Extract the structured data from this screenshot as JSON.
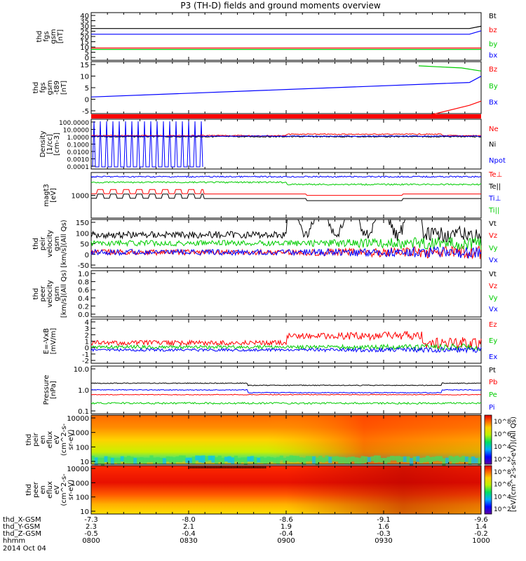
{
  "title": "P3 (TH-D) fields and ground moments overview",
  "colors": {
    "black": "#000000",
    "red": "#ff0000",
    "green": "#00cc00",
    "blue": "#0000ff"
  },
  "chart_data": [
    {
      "type": "line",
      "ylabel": [
        "thd",
        "fgs",
        "gsm",
        "[nT]"
      ],
      "yticks": [
        "40",
        "35",
        "30",
        "25",
        "20",
        "15",
        "10",
        "5",
        "0"
      ],
      "legend": [
        {
          "name": "Bt",
          "color": "black"
        },
        {
          "name": "bz",
          "color": "red"
        },
        {
          "name": "by",
          "color": "green"
        },
        {
          "name": "bx",
          "color": "blue"
        }
      ],
      "series": [
        {
          "name": "Bt",
          "color": "black",
          "points": [
            [
              0,
              28
            ],
            [
              0.97,
              28
            ],
            [
              1,
              30
            ]
          ]
        },
        {
          "name": "bz",
          "color": "red",
          "points": [
            [
              0,
              10.8
            ],
            [
              1,
              10.8
            ]
          ]
        },
        {
          "name": "by",
          "color": "green",
          "points": [
            [
              0,
              9.6
            ],
            [
              1,
              9.6
            ]
          ]
        },
        {
          "name": "bx",
          "color": "blue",
          "points": [
            [
              0,
              23
            ],
            [
              0.97,
              23
            ],
            [
              1,
              26
            ]
          ]
        }
      ],
      "ylim": [
        0,
        42
      ]
    },
    {
      "type": "line",
      "ylabel": [
        "thd",
        "fgs",
        "gsm",
        "-t89",
        "[nT]"
      ],
      "yticks": [
        "15",
        "10",
        "5",
        "0",
        "-5"
      ],
      "legend": [
        {
          "name": "Bz",
          "color": "red"
        },
        {
          "name": "By",
          "color": "green"
        },
        {
          "name": "Bx",
          "color": "blue"
        }
      ],
      "series": [
        {
          "name": "Bz",
          "color": "red",
          "points": [
            [
              0.84,
              -10
            ],
            [
              0.97,
              -4
            ],
            [
              1,
              -2
            ]
          ]
        },
        {
          "name": "By",
          "color": "green",
          "points": [
            [
              0.84,
              15
            ],
            [
              0.95,
              14
            ],
            [
              1,
              12.5
            ]
          ]
        },
        {
          "name": "Bx",
          "color": "blue",
          "points": [
            [
              0,
              0
            ],
            [
              0.97,
              7
            ],
            [
              1,
              10
            ]
          ]
        }
      ],
      "ylim": [
        -8,
        17
      ]
    },
    {
      "type": "line",
      "ylabel": [
        "Density",
        "[1/cc]",
        "[cm-3]"
      ],
      "yticks": [
        "100.0000",
        "10.0000",
        "1.0000",
        "0.1000",
        "0.0100",
        "0.0010",
        "0.0001"
      ],
      "legend": [
        {
          "name": "Ne",
          "color": "red"
        },
        {
          "name": "Ni",
          "color": "black"
        },
        {
          "name": "Npot",
          "color": "blue"
        }
      ],
      "series": [],
      "scale": "log"
    },
    {
      "type": "line",
      "ylabel": [
        "magt3",
        "[eV]"
      ],
      "yticks": [
        "1000"
      ],
      "legend": [
        {
          "name": "Te⊥",
          "color": "red"
        },
        {
          "name": "Te||",
          "color": "black"
        },
        {
          "name": "Ti⊥",
          "color": "blue"
        },
        {
          "name": "Ti||",
          "color": "green"
        }
      ],
      "series": [],
      "scale": "log"
    },
    {
      "type": "line",
      "ylabel": [
        "thd",
        "peir",
        "velocity",
        "gsm",
        "[km/s](All Qs)"
      ],
      "yticks": [
        "150",
        "100",
        "50",
        "0",
        "-50"
      ],
      "legend": [
        {
          "name": "Vt",
          "color": "black"
        },
        {
          "name": "Vz",
          "color": "red"
        },
        {
          "name": "Vy",
          "color": "green"
        },
        {
          "name": "Vx",
          "color": "blue"
        }
      ],
      "series": [],
      "ylim": [
        -50,
        150
      ]
    },
    {
      "type": "line",
      "ylabel": [
        "thd",
        "peer",
        "velocity",
        "gsm",
        "[km/s](All Qs)"
      ],
      "yticks": [
        "1.0",
        "0.8",
        "0.6",
        "0.4",
        "0.2",
        "0.0"
      ],
      "legend": [
        {
          "name": "Vt",
          "color": "black"
        },
        {
          "name": "Vz",
          "color": "red"
        },
        {
          "name": "Vy",
          "color": "green"
        },
        {
          "name": "Vx",
          "color": "blue"
        }
      ],
      "series": [],
      "ylim": [
        0,
        1
      ]
    },
    {
      "type": "line",
      "ylabel": [
        "E=-VxB",
        "[mV/m]"
      ],
      "yticks": [
        "4",
        "3",
        "2",
        "1",
        "0",
        "-1",
        "-2"
      ],
      "legend": [
        {
          "name": "Ez",
          "color": "red"
        },
        {
          "name": "Ey",
          "color": "green"
        },
        {
          "name": "Ex",
          "color": "blue"
        }
      ],
      "series": [],
      "ylim": [
        -2,
        4
      ]
    },
    {
      "type": "line",
      "ylabel": [
        "Pressure",
        "[nPa]"
      ],
      "yticks": [
        "10.0",
        "1.0",
        "0.1"
      ],
      "legend": [
        {
          "name": "Pt",
          "color": "black"
        },
        {
          "name": "Pb",
          "color": "red"
        },
        {
          "name": "Pe",
          "color": "green"
        },
        {
          "name": "Pi",
          "color": "blue"
        }
      ],
      "series": [],
      "scale": "log"
    },
    {
      "type": "heatmap",
      "ylabel": [
        "thd",
        "peir",
        "en",
        "eflux",
        "eV",
        "(cm^2-s-",
        "sr-eV)"
      ],
      "yticks": [
        "10000",
        "1000",
        "100",
        "10"
      ],
      "scale": "log"
    },
    {
      "type": "heatmap",
      "ylabel": [
        "thd",
        "peer",
        "en",
        "eflux",
        "eV",
        "(cm^2-s-",
        "sr-eV)"
      ],
      "yticks": [
        "10000",
        "1000",
        "100",
        "10"
      ],
      "scale": "log"
    }
  ],
  "colorbar": {
    "label": "[eV/(cm^2-s-sr-eV)](All Qs)",
    "upper_ticks": [
      "10^8",
      "10^6",
      "10^4",
      "10^2"
    ],
    "lower_ticks": [
      "10^8",
      "10^6",
      "10^4",
      "10^2"
    ]
  },
  "x_axis": {
    "rows": [
      {
        "label": "thd_X-GSM",
        "values": [
          "-7.3",
          "-8.0",
          "-8.6",
          "-9.1",
          "-9.6"
        ]
      },
      {
        "label": "thd_Y-GSM",
        "values": [
          "2.3",
          "2.1",
          "1.9",
          "1.6",
          "1.4"
        ]
      },
      {
        "label": "thd_Z-GSM",
        "values": [
          "-0.5",
          "-0.4",
          "-0.4",
          "-0.3",
          "-0.2"
        ]
      },
      {
        "label": "hhmm",
        "values": [
          "0800",
          "0830",
          "0900",
          "0930",
          "1000"
        ]
      }
    ],
    "date": "2014 Oct 04"
  }
}
